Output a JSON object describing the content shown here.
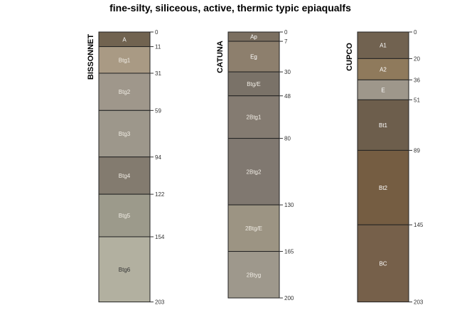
{
  "title": "fine-silty, siliceous, active, thermic typic epiaqualfs",
  "profiles": [
    {
      "name": "BISSONNET",
      "horizons": [
        {
          "name": "A",
          "top": 0,
          "bottom": 11,
          "color": "#716350",
          "text_color": "#ffffff"
        },
        {
          "name": "Btg1",
          "top": 11,
          "bottom": 31,
          "color": "#a99a84",
          "text_color": "#f0ece4"
        },
        {
          "name": "Btg2",
          "top": 31,
          "bottom": 59,
          "color": "#9f978b",
          "text_color": "#f0ece4"
        },
        {
          "name": "Btg3",
          "top": 59,
          "bottom": 94,
          "color": "#9d978b",
          "text_color": "#f0ece4"
        },
        {
          "name": "Btg4",
          "top": 94,
          "bottom": 122,
          "color": "#837b6f",
          "text_color": "#f0ece4"
        },
        {
          "name": "Btg5",
          "top": 122,
          "bottom": 154,
          "color": "#9c9a8b",
          "text_color": "#f0ece4"
        },
        {
          "name": "Btg6",
          "top": 154,
          "bottom": 203,
          "color": "#b2b0a0",
          "text_color": "#333333"
        }
      ],
      "depth_labels": [
        "0",
        "11",
        "31",
        "59",
        "94",
        "122",
        "154",
        "203"
      ]
    },
    {
      "name": "CATUNA",
      "horizons": [
        {
          "name": "Ap",
          "top": 0,
          "bottom": 7,
          "color": "#7b6f60",
          "text_color": "#ffffff"
        },
        {
          "name": "Eg",
          "top": 7,
          "bottom": 30,
          "color": "#8d7f6d",
          "text_color": "#ffffff"
        },
        {
          "name": "Btg/E",
          "top": 30,
          "bottom": 48,
          "color": "#7a7268",
          "text_color": "#f0ece4"
        },
        {
          "name": "2Btg1",
          "top": 48,
          "bottom": 80,
          "color": "#847b71",
          "text_color": "#f0ece4"
        },
        {
          "name": "2Btg2",
          "top": 80,
          "bottom": 130,
          "color": "#807870",
          "text_color": "#f0ece4"
        },
        {
          "name": "2Btg/E",
          "top": 130,
          "bottom": 165,
          "color": "#9c9483",
          "text_color": "#f0ece4"
        },
        {
          "name": "2Btyg",
          "top": 165,
          "bottom": 200,
          "color": "#9e988c",
          "text_color": "#f0ece4"
        }
      ],
      "depth_labels": [
        "0",
        "7",
        "30",
        "48",
        "80",
        "130",
        "165",
        "200"
      ]
    },
    {
      "name": "CUPCO",
      "horizons": [
        {
          "name": "A1",
          "top": 0,
          "bottom": 20,
          "color": "#716250",
          "text_color": "#ffffff"
        },
        {
          "name": "A2",
          "top": 20,
          "bottom": 36,
          "color": "#8f7a5c",
          "text_color": "#ffffff"
        },
        {
          "name": "E",
          "top": 36,
          "bottom": 51,
          "color": "#9e978b",
          "text_color": "#ffffff"
        },
        {
          "name": "Bt1",
          "top": 51,
          "bottom": 89,
          "color": "#6d5e4c",
          "text_color": "#ffffff"
        },
        {
          "name": "Bt2",
          "top": 89,
          "bottom": 145,
          "color": "#755d42",
          "text_color": "#ffffff"
        },
        {
          "name": "BC",
          "top": 145,
          "bottom": 203,
          "color": "#76604a",
          "text_color": "#ffffff"
        }
      ],
      "depth_labels": [
        "0",
        "20",
        "36",
        "51",
        "89",
        "145",
        "203"
      ]
    }
  ]
}
